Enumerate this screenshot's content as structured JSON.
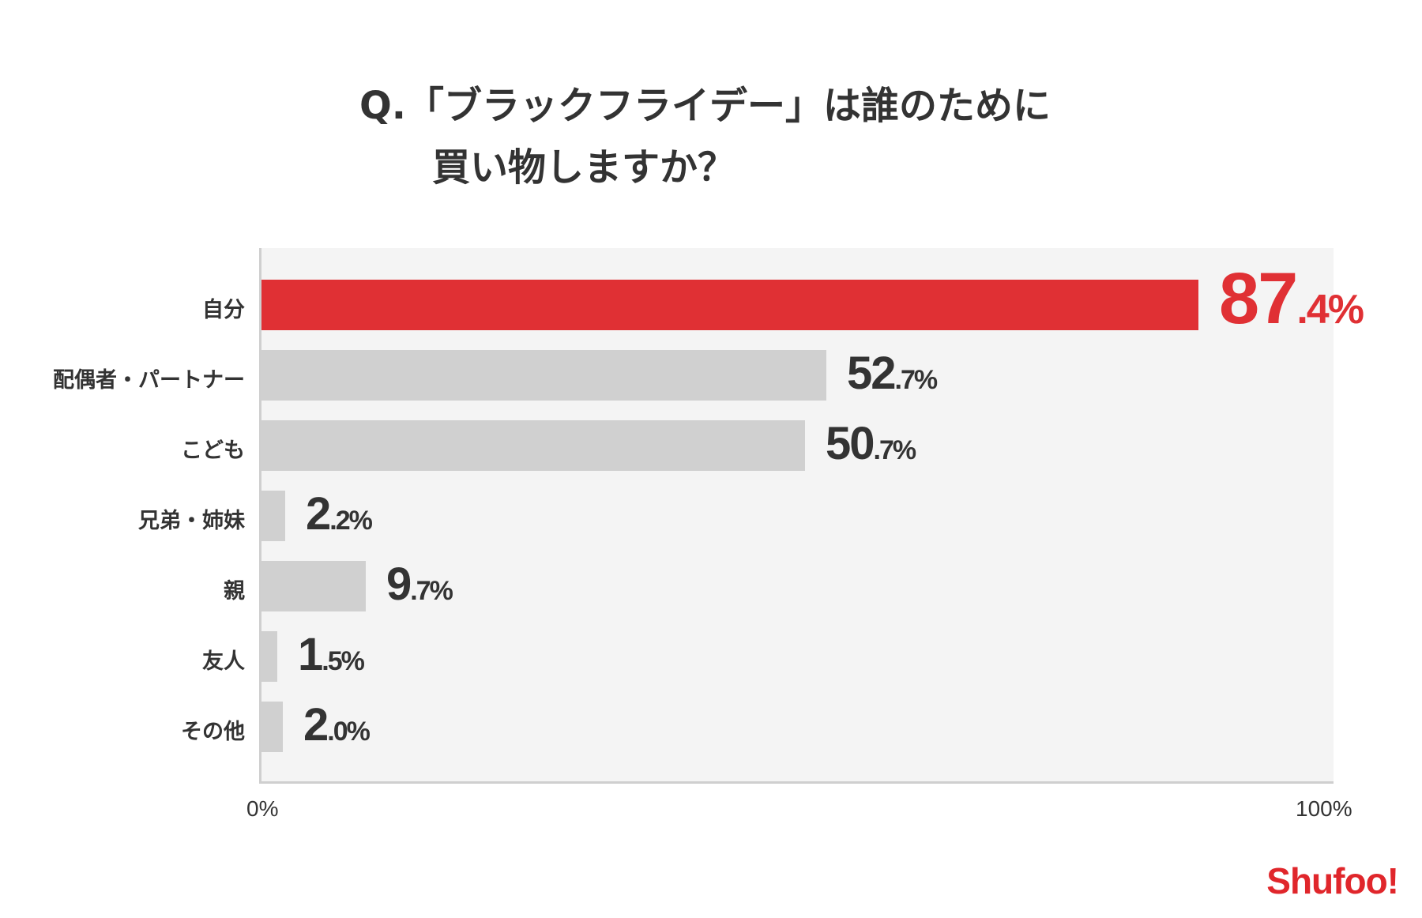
{
  "chart_data": {
    "type": "bar",
    "orientation": "horizontal",
    "title_line1": "Q.「ブラックフライデー」は誰のために",
    "title_line2": "買い物しますか？",
    "categories": [
      "自分",
      "配偶者・パートナー",
      "こども",
      "兄弟・姉妹",
      "親",
      "友人",
      "その他"
    ],
    "values": [
      87.4,
      52.7,
      50.7,
      2.2,
      9.7,
      1.5,
      2.0
    ],
    "value_labels": [
      {
        "int": "87",
        "dec": ".4%"
      },
      {
        "int": "52",
        "dec": ".7%"
      },
      {
        "int": "50",
        "dec": ".7%"
      },
      {
        "int": "2",
        "dec": ".2%"
      },
      {
        "int": "9",
        "dec": ".7%"
      },
      {
        "int": "1",
        "dec": ".5%"
      },
      {
        "int": "2",
        "dec": ".0%"
      }
    ],
    "xlim": [
      0,
      100
    ],
    "x_ticks": [
      "0%",
      "100%"
    ],
    "highlight_index": 0,
    "colors": {
      "highlight": "#e03034",
      "bar": "#d0d0d0",
      "highlight_label": "#e03034",
      "label": "#333333",
      "plot_bg": "#f4f4f4"
    }
  },
  "brand": {
    "logo": "Shufoo!"
  }
}
